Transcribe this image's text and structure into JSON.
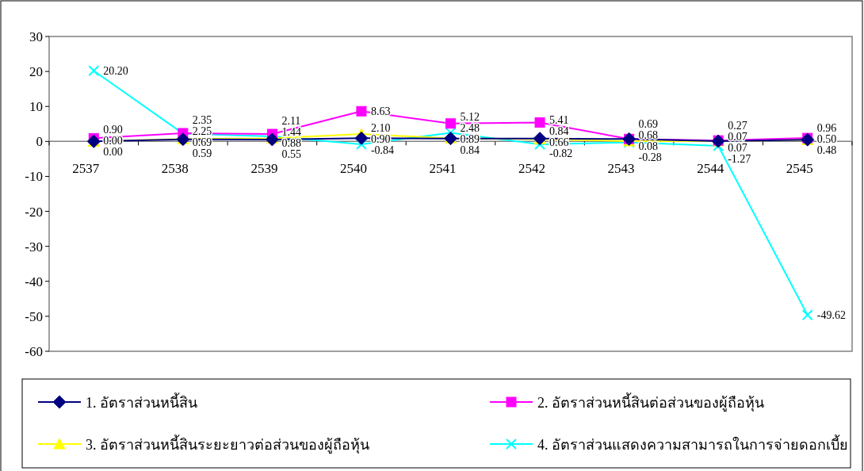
{
  "chart_data": {
    "type": "line",
    "categories": [
      "2537",
      "2538",
      "2539",
      "2540",
      "2541",
      "2542",
      "2543",
      "2544",
      "2545"
    ],
    "series": [
      {
        "name": "1. อัตราส่วนหนี้สิน",
        "color": "#000080",
        "marker": "diamond",
        "values": [
          0.0,
          0.59,
          0.55,
          0.9,
          0.84,
          0.84,
          0.68,
          0.07,
          0.5
        ],
        "value_labels": [
          "0.00",
          "0.59",
          "0.55",
          "0.90",
          "0.84",
          "0.84",
          "0.68",
          "0.07",
          "0.50"
        ]
      },
      {
        "name": "2. อัตราส่วนหนี้สินต่อส่วนของผู้ถือหุ้น",
        "color": "#ff00ff",
        "marker": "square",
        "values": [
          0.9,
          2.35,
          2.11,
          8.63,
          5.12,
          5.41,
          0.69,
          0.27,
          0.96
        ],
        "value_labels": [
          "0.90",
          "2.35",
          "2.11",
          "8.63",
          "5.12",
          "5.41",
          "0.69",
          "0.27",
          "0.96"
        ]
      },
      {
        "name": "3. อัตราส่วนหนี้สินระยะยาวต่อส่วนของผู้ถือหุ้น",
        "color": "#ffff00",
        "marker": "triangle",
        "values": [
          0.0,
          0.69,
          0.88,
          2.1,
          0.89,
          0.66,
          0.08,
          0.07,
          0.48
        ],
        "value_labels": [
          "0.00",
          "0.69",
          "0.88",
          "2.10",
          "0.89",
          "0.66",
          "0.08",
          "0.07",
          "0.48"
        ]
      },
      {
        "name": "4. อัตราส่วนแสดงความสามารถในการจ่ายดอกเบี้ย",
        "color": "#00ffff",
        "marker": "cross",
        "values": [
          20.2,
          2.25,
          1.44,
          -0.84,
          2.48,
          -0.82,
          -0.28,
          -1.27,
          -49.62
        ],
        "value_labels": [
          "20.20",
          "2.25",
          "1.44",
          "-0.84",
          "2.48",
          "-0.82",
          "-0.28",
          "-1.27",
          "-49.62"
        ]
      }
    ],
    "ylim": [
      -60,
      30
    ],
    "yticks": [
      -60,
      -50,
      -40,
      -30,
      -20,
      -10,
      0,
      10,
      20,
      30
    ],
    "legend": "bottom"
  }
}
